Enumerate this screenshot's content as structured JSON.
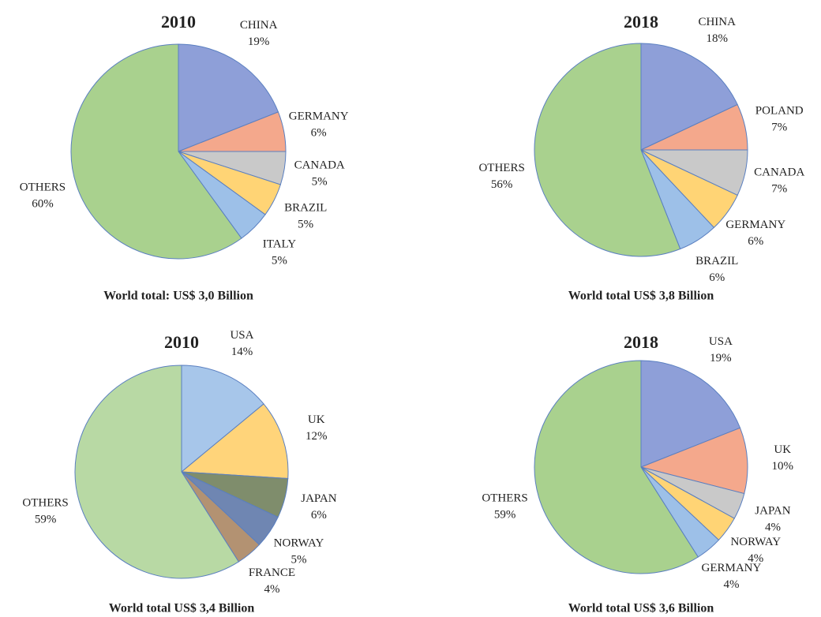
{
  "chart_data": [
    {
      "type": "pie",
      "title": "2010",
      "caption": "World total: US$ 3,0 Billion",
      "categories": [
        "CHINA",
        "GERMANY",
        "CANADA",
        "BRAZIL",
        "ITALY",
        "OTHERS"
      ],
      "values": [
        19,
        6,
        5,
        5,
        5,
        60
      ],
      "value_labels": [
        "19%",
        "6%",
        "5%",
        "5%",
        "5%",
        "60%"
      ],
      "colors": [
        "#8e9fd8",
        "#f4a88c",
        "#c9c9c9",
        "#ffd475",
        "#9dc0e8",
        "#a9d18e"
      ]
    },
    {
      "type": "pie",
      "title": "2018",
      "caption": "World total US$ 3,8 Billion",
      "categories": [
        "CHINA",
        "POLAND",
        "CANADA",
        "GERMANY",
        "BRAZIL",
        "OTHERS"
      ],
      "values": [
        18,
        7,
        7,
        6,
        6,
        56
      ],
      "value_labels": [
        "18%",
        "7%",
        "7%",
        "6%",
        "6%",
        "56%"
      ],
      "colors": [
        "#8e9fd8",
        "#f4a88c",
        "#c9c9c9",
        "#ffd475",
        "#9dc0e8",
        "#a9d18e"
      ]
    },
    {
      "type": "pie",
      "title": "2010",
      "caption": "World total US$ 3,4 Billion",
      "categories": [
        "USA",
        "UK",
        "JAPAN",
        "NORWAY",
        "FRANCE",
        "OTHERS"
      ],
      "values": [
        14,
        12,
        6,
        5,
        4,
        59
      ],
      "value_labels": [
        "14%",
        "12%",
        "6%",
        "5%",
        "4%",
        "59%"
      ],
      "colors": [
        "#a7c6ea",
        "#ffd47a",
        "#7f8d6c",
        "#6f86b2",
        "#b39272",
        "#b8d9a4"
      ]
    },
    {
      "type": "pie",
      "title": "2018",
      "caption": "World total US$ 3,6 Billion",
      "categories": [
        "USA",
        "UK",
        "JAPAN",
        "NORWAY",
        "GERMANY",
        "OTHERS"
      ],
      "values": [
        19,
        10,
        4,
        4,
        4,
        59
      ],
      "value_labels": [
        "19%",
        "10%",
        "4%",
        "4%",
        "4%",
        "59%"
      ],
      "colors": [
        "#8e9fd8",
        "#f4a88c",
        "#c9c9c9",
        "#ffd475",
        "#9dc0e8",
        "#a9d18e"
      ]
    }
  ]
}
